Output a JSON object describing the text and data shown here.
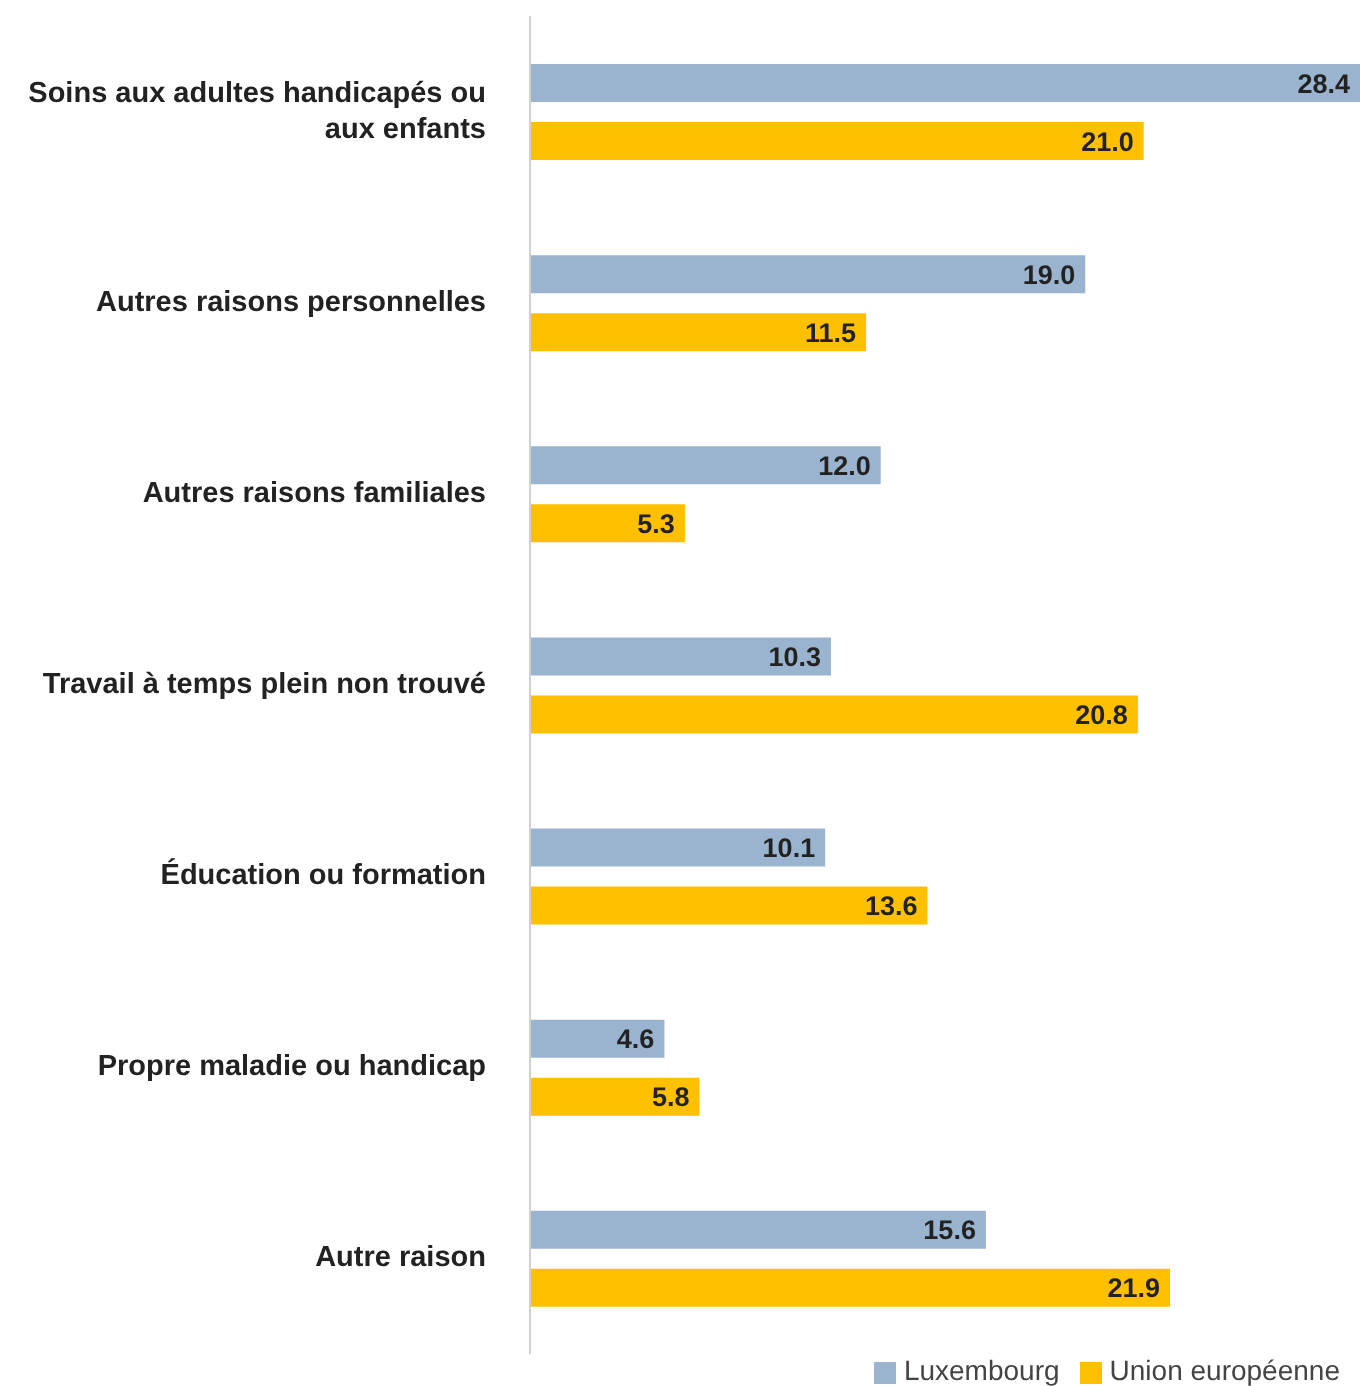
{
  "chart_data": {
    "type": "bar",
    "orientation": "horizontal",
    "categories": [
      "Soins aux adultes handicapés ou aux enfants",
      "Autres raisons personnelles",
      "Autres raisons familiales",
      "Travail à temps plein non trouvé",
      "Éducation ou formation",
      "Propre maladie ou handicap",
      "Autre raison"
    ],
    "series": [
      {
        "name": "Luxembourg",
        "color": "#9ab4cf",
        "values": [
          28.4,
          19.0,
          12.0,
          10.3,
          10.1,
          4.6,
          15.6
        ],
        "value_labels": [
          "28.4",
          "19.0",
          "12.0",
          "10.3",
          "10.1",
          "4.6",
          "15.6"
        ]
      },
      {
        "name": "Union européenne",
        "color": "#ffc000",
        "values": [
          21.0,
          11.5,
          5.3,
          20.8,
          13.6,
          5.8,
          21.9
        ],
        "value_labels": [
          "21.0",
          "11.5",
          "5.3",
          "20.8",
          "13.6",
          "5.8",
          "21.9"
        ]
      }
    ],
    "legend": "bottom right"
  }
}
